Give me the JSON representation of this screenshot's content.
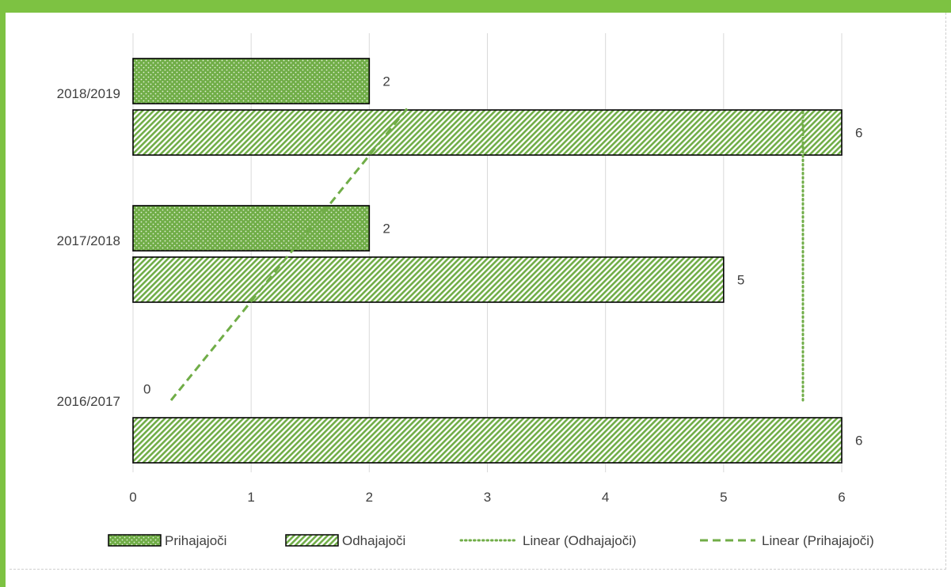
{
  "chart_data": {
    "type": "bar",
    "orientation": "horizontal",
    "categories": [
      "2016/2017",
      "2017/2018",
      "2018/2019"
    ],
    "series": [
      {
        "name": "Prihajajoči",
        "values": [
          0,
          2,
          2
        ],
        "pattern": "dots"
      },
      {
        "name": "Odhajajoči",
        "values": [
          6,
          5,
          6
        ],
        "pattern": "diagonal-stripes"
      }
    ],
    "trendlines": [
      {
        "name": "Linear (Odhajajoči)",
        "series": "Odhajajoči",
        "style": "dotted"
      },
      {
        "name": "Linear (Prihajajoči)",
        "series": "Prihajajoči",
        "style": "dashed"
      }
    ],
    "x_ticks": [
      "0",
      "1",
      "2",
      "3",
      "4",
      "5",
      "6"
    ],
    "xlim": [
      0,
      6
    ],
    "grid": "vertical",
    "legend_position": "bottom",
    "colors": {
      "accent": "#7dc242",
      "bar_fill": "#70ad47",
      "bar_light": "#e2f0d9",
      "trend": "#70ad47",
      "grid": "#d9d9d9",
      "text": "#404040"
    }
  }
}
